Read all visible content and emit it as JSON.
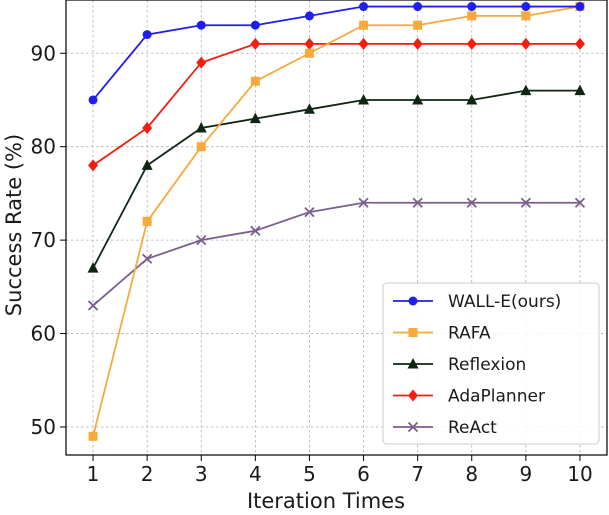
{
  "chart_data": {
    "type": "line",
    "title": "",
    "xlabel": "Iteration Times",
    "ylabel": "Success Rate (%)",
    "x": [
      1,
      2,
      3,
      4,
      5,
      6,
      7,
      8,
      9,
      10
    ],
    "xlim": [
      0.5,
      10.5
    ],
    "ylim": [
      47,
      95.7
    ],
    "yticks": [
      50,
      60,
      70,
      80,
      90
    ],
    "grid": true,
    "legend_position": "lower-right",
    "series": [
      {
        "name": "WALL-E(ours)",
        "color": "#1f1ff0",
        "marker": "circle",
        "values": [
          85,
          92,
          93,
          93,
          94,
          95,
          95,
          95,
          95,
          95
        ]
      },
      {
        "name": "RAFA",
        "color": "#f7a93b",
        "marker": "square",
        "values": [
          49,
          72,
          80,
          87,
          90,
          93,
          93,
          94,
          94,
          95
        ]
      },
      {
        "name": "Reflexion",
        "color": "#0f2613",
        "marker": "triangle",
        "values": [
          67,
          78,
          82,
          83,
          84,
          85,
          85,
          85,
          86,
          86
        ]
      },
      {
        "name": "AdaPlanner",
        "color": "#f21f10",
        "marker": "diamond",
        "values": [
          78,
          82,
          89,
          91,
          91,
          91,
          91,
          91,
          91,
          91
        ]
      },
      {
        "name": "ReAct",
        "color": "#7a5e8c",
        "marker": "x",
        "values": [
          63,
          68,
          70,
          71,
          73,
          74,
          74,
          74,
          74,
          74
        ]
      }
    ]
  }
}
